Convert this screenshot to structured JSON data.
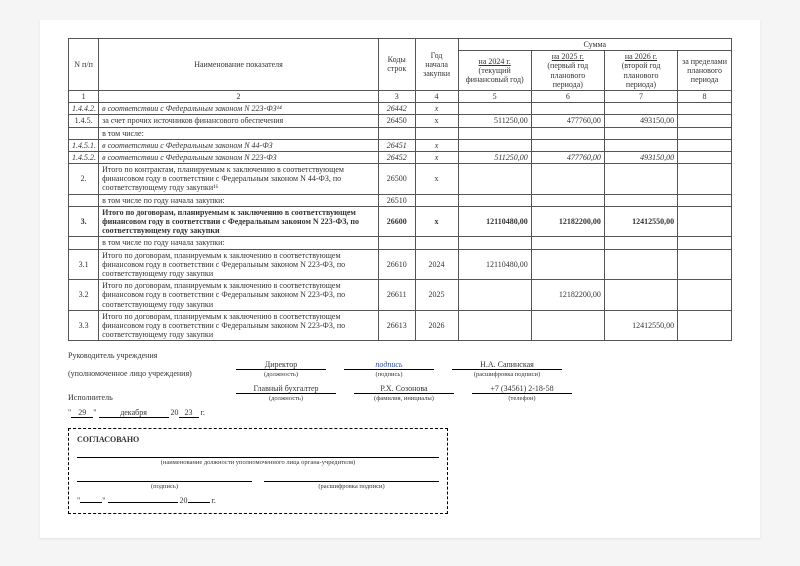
{
  "header": {
    "col_n": "N п/п",
    "col_name": "Наименование показателя",
    "col_code": "Коды строк",
    "col_year": "Год начала закупки",
    "col_sum": "Сумма",
    "col_y1_top": "на 2024 г.",
    "col_y1_sub": "(текущий финансовый год)",
    "col_y2_top": "на 2025 г.",
    "col_y2_sub": "(первый год планового периода)",
    "col_y3_top": "на 2026 г.",
    "col_y3_sub": "(второй год планового периода)",
    "col_beyond": "за пределами планового периода",
    "num1": "1",
    "num2": "2",
    "num3": "3",
    "num4": "4",
    "num5": "5",
    "num6": "6",
    "num7": "7",
    "num8": "8"
  },
  "rows": [
    {
      "n": "1.4.4.2.",
      "name": "в соответствии с Федеральным законом N 223-ФЗ¹⁴",
      "code": "26442",
      "year": "x",
      "v1": "",
      "v2": "",
      "v3": "",
      "v4": "",
      "cls": "italic"
    },
    {
      "n": "1.4.5.",
      "name": "за счет прочих источников финансового обеспечения",
      "code": "26450",
      "year": "x",
      "v1": "511250,00",
      "v2": "477760,00",
      "v3": "493150,00",
      "v4": ""
    },
    {
      "n": "",
      "name": "в том числе:",
      "code": "",
      "year": "",
      "v1": "",
      "v2": "",
      "v3": "",
      "v4": ""
    },
    {
      "n": "1.4.5.1.",
      "name": "в соответствии с Федеральным законом N 44-ФЗ",
      "code": "26451",
      "year": "x",
      "v1": "",
      "v2": "",
      "v3": "",
      "v4": "",
      "cls": "italic"
    },
    {
      "n": "1.4.5.2.",
      "name": "в соответствии с Федеральным законом N 223-ФЗ",
      "code": "26452",
      "year": "x",
      "v1": "511250,00",
      "v2": "477760,00",
      "v3": "493150,00",
      "v4": "",
      "cls": "italic"
    },
    {
      "n": "2.",
      "name": "Итого по контрактам, планируемым к заключению в соответствующем финансовом году в соответствии с Федеральным законом N 44-ФЗ, по соответствующему году закупки¹⁶",
      "code": "26500",
      "year": "x",
      "v1": "",
      "v2": "",
      "v3": "",
      "v4": ""
    },
    {
      "n": "",
      "name": "в том числе по году начала закупки:",
      "code": "26510",
      "year": "",
      "v1": "",
      "v2": "",
      "v3": "",
      "v4": ""
    },
    {
      "n": "3.",
      "name": "Итого по договорам, планируемым к заключению в соответствующем финансовом году в соответствии с Федеральным законом N 223-ФЗ, по соответствующему году закупки",
      "code": "26600",
      "year": "x",
      "v1": "12110480,00",
      "v2": "12182200,00",
      "v3": "12412550,00",
      "v4": "",
      "cls": "bold"
    },
    {
      "n": "",
      "name": "в том числе по году начала закупки:",
      "code": "",
      "year": "",
      "v1": "",
      "v2": "",
      "v3": "",
      "v4": ""
    },
    {
      "n": "3.1",
      "name": "Итого по договорам, планируемым к заключению в соответствующем финансовом году в соответствии с Федеральным законом N 223-ФЗ, по соответствующему году закупки",
      "code": "26610",
      "year": "2024",
      "v1": "12110480,00",
      "v2": "",
      "v3": "",
      "v4": ""
    },
    {
      "n": "3.2",
      "name": "Итого по договорам, планируемым к заключению в соответствующем финансовом году в соответствии с Федеральным законом N 223-ФЗ, по соответствующему году закупки",
      "code": "26611",
      "year": "2025",
      "v1": "",
      "v2": "12182200,00",
      "v3": "",
      "v4": ""
    },
    {
      "n": "3.3",
      "name": "Итого по договорам, планируемым к заключению в соответствующем финансовом году в соответствии с Федеральным законом N 223-ФЗ, по соответствующему году закупки",
      "code": "26613",
      "year": "2026",
      "v1": "",
      "v2": "",
      "v3": "12412550,00",
      "v4": ""
    }
  ],
  "sig": {
    "head_label": "Руководитель учреждения",
    "head_sub": "(уполномоченное лицо учреждения)",
    "position": "Директор",
    "position_sub": "(должность)",
    "sign_sub": "(подпись)",
    "signature": "подпись",
    "name": "Н.А. Сапинская",
    "name_sub": "(расшифровка подписи)",
    "exec_label": "Исполнитель",
    "exec_pos": "Главный бухгалтер",
    "exec_pos_sub": "(должность)",
    "exec_name": "Р.Х. Созонова",
    "exec_name_sub": "(фамилия, инициалы)",
    "phone": "+7 (34561) 2-18-58",
    "phone_sub": "(телефон)"
  },
  "date": {
    "d": "29",
    "m": "декабря",
    "y_prefix": "20",
    "y": "23",
    "g": "г."
  },
  "approve": {
    "title": "СОГЛАСОВАНО",
    "auth_sub": "(наименование должности уполномоченного лица органа-учредителя)",
    "sign_sub": "(подпись)",
    "name_sub": "(расшифровка подписи)",
    "y_prefix": "20",
    "g": "г."
  }
}
